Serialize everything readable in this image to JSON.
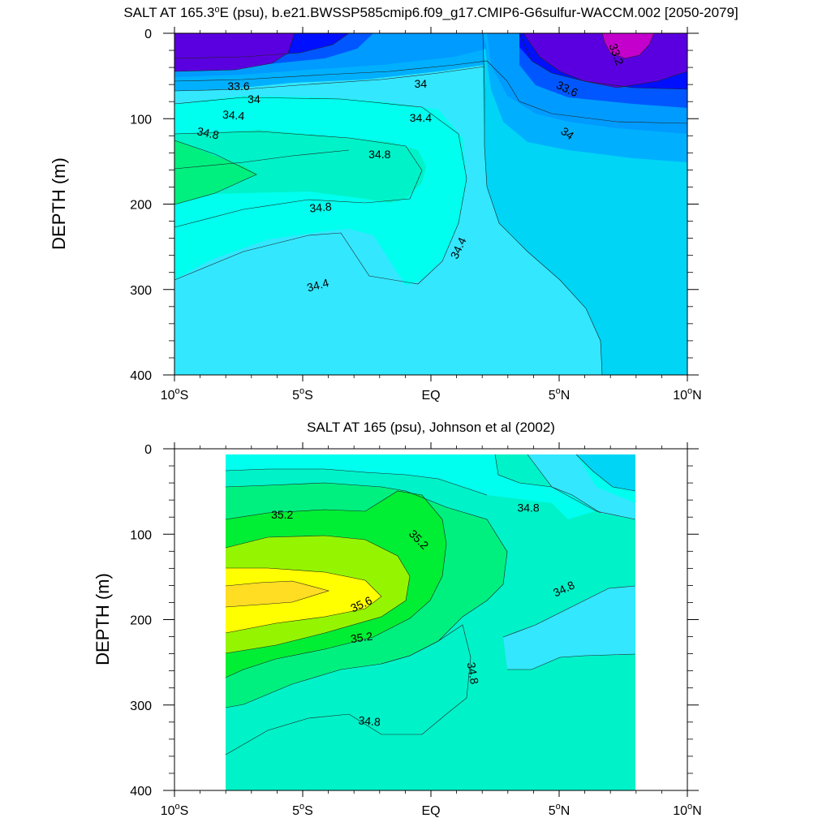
{
  "chart_data": [
    {
      "type": "contour",
      "title_main": "SALT AT 165.3",
      "title_deg": "o",
      "title_rest": "E (psu), b.e21.BWSSP585cmip6.f09_g17.CMIP6-G6sulfur-WACCM.002 [2050-2079]",
      "ylabel": "DEPTH (m)",
      "xlim": [
        -10,
        10
      ],
      "ylim": [
        0,
        400
      ],
      "y_inverted": true,
      "data_xlim": [
        -10,
        10
      ],
      "xticks": [
        {
          "value": -10,
          "num": "10",
          "deg": "o",
          "hemi": "S"
        },
        {
          "value": -5,
          "num": "5",
          "deg": "o",
          "hemi": "S"
        },
        {
          "value": 0,
          "num": "EQ",
          "deg": "",
          "hemi": ""
        },
        {
          "value": 5,
          "num": "5",
          "deg": "o",
          "hemi": "N"
        },
        {
          "value": 10,
          "num": "10",
          "deg": "o",
          "hemi": "N"
        }
      ],
      "yticks": [
        "0",
        "100",
        "200",
        "300",
        "400"
      ],
      "ytick_values": [
        0,
        100,
        200,
        300,
        400
      ],
      "contour_labels": [
        {
          "text": "33.2",
          "x": 7.2,
          "y": 25,
          "rotate": 70
        },
        {
          "text": "33.6",
          "x": -7.5,
          "y": 63,
          "rotate": 0
        },
        {
          "text": "34",
          "x": -6.9,
          "y": 78,
          "rotate": 0
        },
        {
          "text": "34.4",
          "x": -7.7,
          "y": 97,
          "rotate": 5
        },
        {
          "text": "34.8",
          "x": -8.7,
          "y": 118,
          "rotate": 12
        },
        {
          "text": "34",
          "x": -0.4,
          "y": 60,
          "rotate": 0
        },
        {
          "text": "34.4",
          "x": -0.4,
          "y": 100,
          "rotate": 0
        },
        {
          "text": "33.6",
          "x": 5.3,
          "y": 66,
          "rotate": 25
        },
        {
          "text": "34",
          "x": 5.3,
          "y": 118,
          "rotate": 35
        },
        {
          "text": "34.8",
          "x": -2.0,
          "y": 143,
          "rotate": 0
        },
        {
          "text": "34.8",
          "x": -4.3,
          "y": 205,
          "rotate": -5
        },
        {
          "text": "34.4",
          "x": 1.1,
          "y": 252,
          "rotate": -65
        },
        {
          "text": "34.4",
          "x": -4.4,
          "y": 296,
          "rotate": -15
        }
      ]
    },
    {
      "type": "contour",
      "title_main": "SALT AT 165 (psu), Johnson et al (2002)",
      "title_deg": "",
      "title_rest": "",
      "ylabel": "DEPTH (m)",
      "xlim": [
        -10,
        10
      ],
      "ylim": [
        0,
        400
      ],
      "y_inverted": true,
      "data_xlim": [
        -8,
        8
      ],
      "xticks": [
        {
          "value": -10,
          "num": "10",
          "deg": "o",
          "hemi": "S"
        },
        {
          "value": -5,
          "num": "5",
          "deg": "o",
          "hemi": "S"
        },
        {
          "value": 0,
          "num": "EQ",
          "deg": "",
          "hemi": ""
        },
        {
          "value": 5,
          "num": "5",
          "deg": "o",
          "hemi": "N"
        },
        {
          "value": 10,
          "num": "10",
          "deg": "o",
          "hemi": "N"
        }
      ],
      "yticks": [
        "0",
        "100",
        "200",
        "300",
        "400"
      ],
      "ytick_values": [
        0,
        100,
        200,
        300,
        400
      ],
      "contour_labels": [
        {
          "text": "35.2",
          "x": -5.8,
          "y": 78,
          "rotate": 0
        },
        {
          "text": "35.2",
          "x": -0.5,
          "y": 107,
          "rotate": 45
        },
        {
          "text": "34.8",
          "x": 3.8,
          "y": 70,
          "rotate": 0
        },
        {
          "text": "35.6",
          "x": -2.7,
          "y": 183,
          "rotate": -25
        },
        {
          "text": "34.8",
          "x": 5.2,
          "y": 165,
          "rotate": -25
        },
        {
          "text": "35.2",
          "x": -2.7,
          "y": 222,
          "rotate": -8
        },
        {
          "text": "34.8",
          "x": 1.6,
          "y": 263,
          "rotate": 80
        },
        {
          "text": "34.8",
          "x": -2.4,
          "y": 320,
          "rotate": 5
        }
      ]
    }
  ],
  "colors": {
    "s33_0": "#c400cc",
    "s33_2": "#5a00e0",
    "s33_4": "#0010ff",
    "s33_6": "#0057ff",
    "s33_8": "#009bff",
    "s34_0": "#00b0ff",
    "s34_2": "#00d5f5",
    "s34_4": "#33e7ff",
    "s34_6": "#00ffee",
    "s34_8": "#00f2c8",
    "s35_0": "#00f080",
    "s35_2": "#00ee34",
    "s35_4": "#95f500",
    "s35_6": "#ffff00",
    "s35_8": "#ffdd22"
  }
}
